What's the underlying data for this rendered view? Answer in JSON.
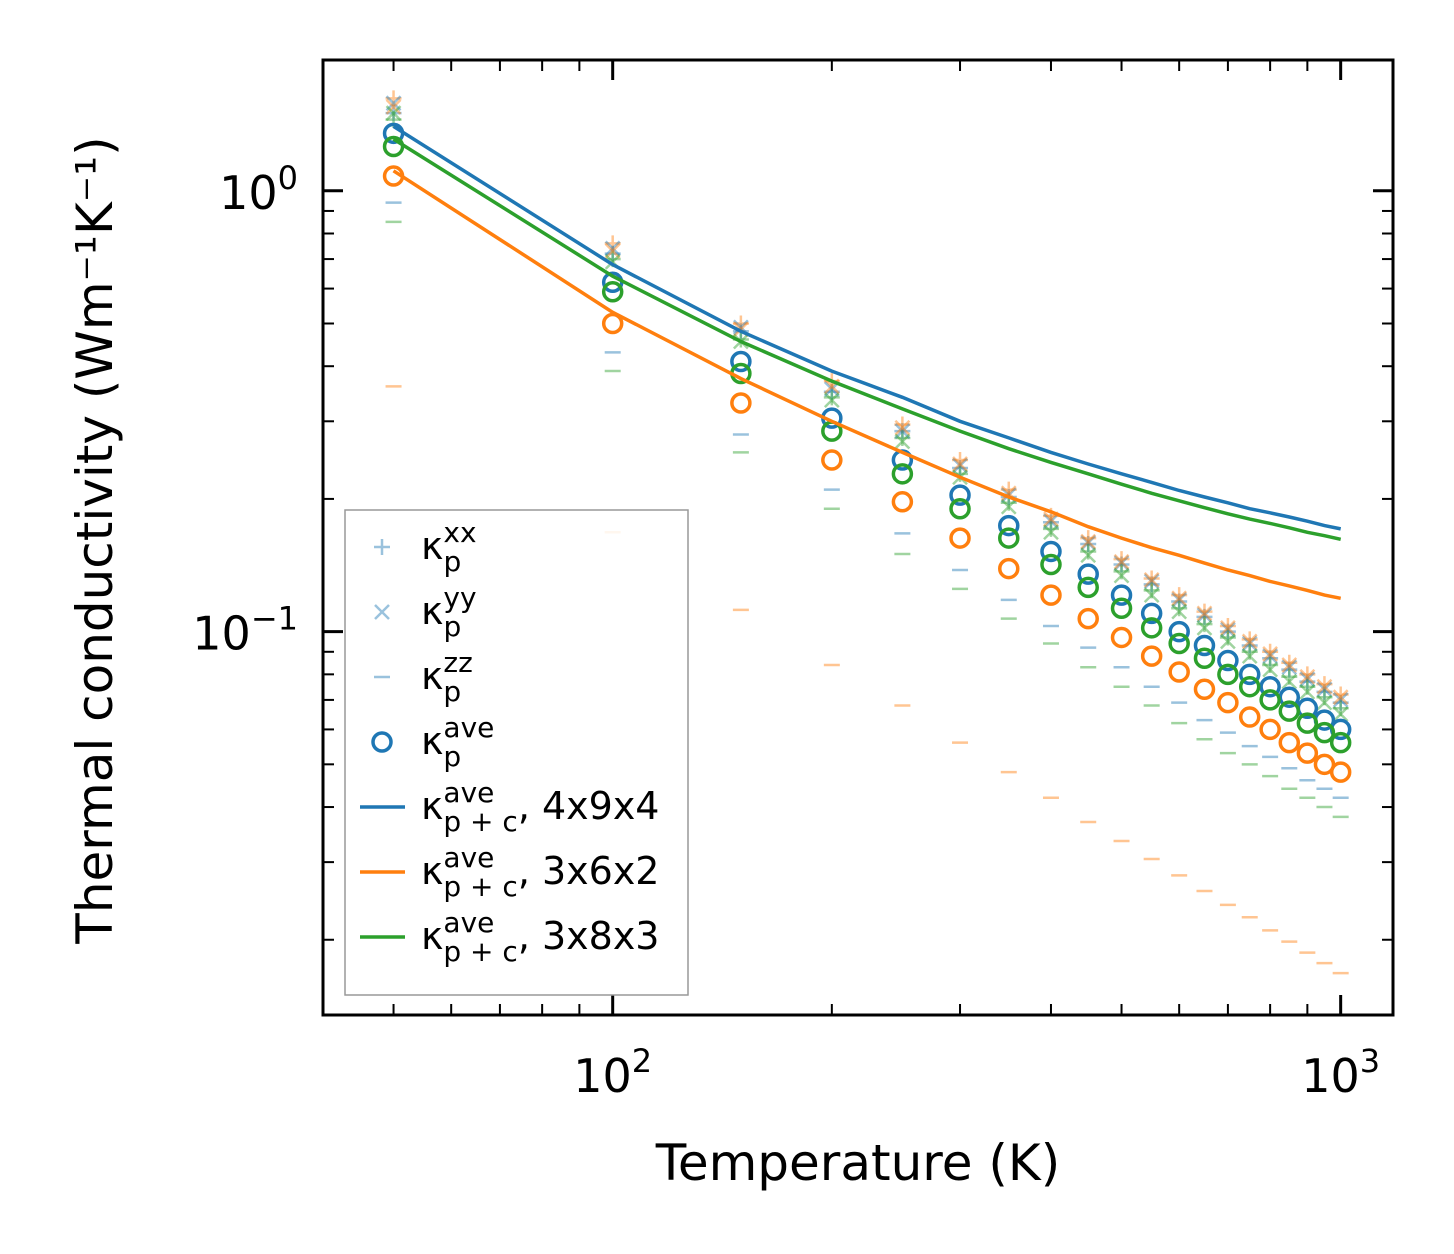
{
  "chart_data": {
    "type": "scatter",
    "x_scale": "log",
    "y_scale": "log",
    "xlabel": "Temperature (K)",
    "ylabel": "Thermal conductivity (Wm⁻¹K⁻¹)",
    "xlim": [
      40,
      1180
    ],
    "ylim": [
      0.0135,
      1.98
    ],
    "x_ticks": [
      {
        "value": 100,
        "base": "10",
        "exp": "2"
      },
      {
        "value": 1000,
        "base": "10",
        "exp": "3"
      }
    ],
    "y_ticks": [
      {
        "value": 1,
        "base": "10",
        "exp": "0"
      },
      {
        "value": 0.1,
        "base": "10",
        "exp": "−1"
      }
    ],
    "x": [
      50,
      100,
      150,
      200,
      250,
      300,
      350,
      400,
      450,
      500,
      550,
      600,
      650,
      700,
      750,
      800,
      850,
      900,
      950,
      1000
    ],
    "colors": {
      "blue": "#1f77b4",
      "orange": "#ff7f0e",
      "green": "#2ca02c"
    },
    "series": [
      {
        "name": "kp_xx_4x9x4",
        "kind": "plus",
        "color": "#1f77b4",
        "opacity": 0.45,
        "values": [
          1.5,
          0.72,
          0.48,
          0.35,
          0.285,
          0.235,
          0.202,
          0.177,
          0.158,
          0.142,
          0.128,
          0.117,
          0.108,
          0.1,
          0.093,
          0.087,
          0.082,
          0.077,
          0.073,
          0.069
        ]
      },
      {
        "name": "kp_xx_3x6x2",
        "kind": "plus",
        "color": "#ff7f0e",
        "opacity": 0.45,
        "values": [
          1.62,
          0.76,
          0.5,
          0.37,
          0.295,
          0.245,
          0.21,
          0.183,
          0.163,
          0.146,
          0.132,
          0.121,
          0.111,
          0.103,
          0.096,
          0.09,
          0.085,
          0.08,
          0.076,
          0.072
        ]
      },
      {
        "name": "kp_xx_3x8x3",
        "kind": "plus",
        "color": "#2ca02c",
        "opacity": 0.45,
        "values": [
          1.45,
          0.7,
          0.46,
          0.34,
          0.275,
          0.228,
          0.196,
          0.171,
          0.152,
          0.137,
          0.124,
          0.113,
          0.104,
          0.097,
          0.09,
          0.084,
          0.079,
          0.075,
          0.071,
          0.067
        ]
      },
      {
        "name": "kp_yy_4x9x4",
        "kind": "cross",
        "color": "#1f77b4",
        "opacity": 0.45,
        "values": [
          1.58,
          0.74,
          0.49,
          0.355,
          0.285,
          0.238,
          0.204,
          0.178,
          0.159,
          0.143,
          0.13,
          0.118,
          0.109,
          0.101,
          0.094,
          0.088,
          0.083,
          0.078,
          0.074,
          0.07
        ]
      },
      {
        "name": "kp_yy_3x6x2",
        "kind": "cross",
        "color": "#ff7f0e",
        "opacity": 0.45,
        "values": [
          1.55,
          0.73,
          0.485,
          0.36,
          0.29,
          0.24,
          0.206,
          0.18,
          0.16,
          0.144,
          0.131,
          0.119,
          0.11,
          0.102,
          0.095,
          0.089,
          0.084,
          0.079,
          0.075,
          0.071
        ]
      },
      {
        "name": "kp_yy_3x8x3",
        "kind": "cross",
        "color": "#2ca02c",
        "opacity": 0.45,
        "values": [
          1.5,
          0.69,
          0.455,
          0.335,
          0.27,
          0.224,
          0.192,
          0.168,
          0.149,
          0.134,
          0.121,
          0.111,
          0.102,
          0.095,
          0.088,
          0.082,
          0.077,
          0.073,
          0.069,
          0.065
        ]
      },
      {
        "name": "kp_zz_4x9x4",
        "kind": "dash",
        "color": "#1f77b4",
        "opacity": 0.45,
        "values": [
          0.94,
          0.43,
          0.28,
          0.21,
          0.167,
          0.138,
          0.118,
          0.103,
          0.092,
          0.083,
          0.075,
          0.069,
          0.063,
          0.059,
          0.055,
          0.052,
          0.049,
          0.046,
          0.044,
          0.042
        ]
      },
      {
        "name": "kp_zz_3x6x2",
        "kind": "dash",
        "color": "#ff7f0e",
        "opacity": 0.45,
        "values": [
          0.36,
          0.168,
          0.112,
          0.084,
          0.068,
          0.056,
          0.048,
          0.042,
          0.037,
          0.0335,
          0.0305,
          0.028,
          0.0258,
          0.024,
          0.0225,
          0.021,
          0.0198,
          0.0187,
          0.0177,
          0.0168
        ]
      },
      {
        "name": "kp_zz_3x8x3",
        "kind": "dash",
        "color": "#2ca02c",
        "opacity": 0.45,
        "values": [
          0.85,
          0.39,
          0.255,
          0.19,
          0.15,
          0.125,
          0.107,
          0.094,
          0.083,
          0.075,
          0.068,
          0.062,
          0.057,
          0.053,
          0.05,
          0.047,
          0.044,
          0.042,
          0.04,
          0.038
        ]
      },
      {
        "name": "kp_ave_4x9x4",
        "kind": "circle",
        "color": "#1f77b4",
        "opacity": 1,
        "values": [
          1.35,
          0.62,
          0.41,
          0.305,
          0.245,
          0.204,
          0.174,
          0.152,
          0.135,
          0.121,
          0.11,
          0.1,
          0.093,
          0.086,
          0.08,
          0.075,
          0.071,
          0.067,
          0.063,
          0.06
        ]
      },
      {
        "name": "kp_ave_3x6x2",
        "kind": "circle",
        "color": "#ff7f0e",
        "opacity": 1,
        "values": [
          1.08,
          0.5,
          0.33,
          0.245,
          0.197,
          0.163,
          0.139,
          0.121,
          0.107,
          0.097,
          0.088,
          0.081,
          0.074,
          0.069,
          0.064,
          0.06,
          0.056,
          0.053,
          0.05,
          0.048
        ]
      },
      {
        "name": "kp_ave_3x8x3",
        "kind": "circle",
        "color": "#2ca02c",
        "opacity": 1,
        "values": [
          1.26,
          0.59,
          0.385,
          0.285,
          0.228,
          0.19,
          0.163,
          0.142,
          0.126,
          0.113,
          0.102,
          0.094,
          0.087,
          0.08,
          0.075,
          0.07,
          0.066,
          0.062,
          0.059,
          0.056
        ]
      },
      {
        "name": "kpc_ave_4x9x4",
        "kind": "line",
        "color": "#1f77b4",
        "opacity": 1,
        "values": [
          1.4,
          0.68,
          0.48,
          0.39,
          0.34,
          0.3,
          0.275,
          0.255,
          0.24,
          0.228,
          0.218,
          0.209,
          0.202,
          0.196,
          0.19,
          0.186,
          0.182,
          0.178,
          0.174,
          0.171
        ]
      },
      {
        "name": "kpc_ave_3x6x2",
        "kind": "line",
        "color": "#ff7f0e",
        "opacity": 1,
        "values": [
          1.11,
          0.53,
          0.375,
          0.3,
          0.255,
          0.224,
          0.202,
          0.187,
          0.173,
          0.163,
          0.155,
          0.149,
          0.143,
          0.138,
          0.134,
          0.13,
          0.127,
          0.124,
          0.121,
          0.119
        ]
      },
      {
        "name": "kpc_ave_3x8x3",
        "kind": "line",
        "color": "#2ca02c",
        "opacity": 1,
        "values": [
          1.31,
          0.64,
          0.455,
          0.37,
          0.32,
          0.285,
          0.26,
          0.242,
          0.228,
          0.216,
          0.206,
          0.198,
          0.191,
          0.185,
          0.18,
          0.176,
          0.172,
          0.168,
          0.165,
          0.162
        ]
      }
    ],
    "legend": {
      "placement": "lower-left",
      "entries": [
        {
          "kind": "plus",
          "color": "#1f77b4",
          "opacity": 0.45,
          "symbol": "κ",
          "sub": "p",
          "sup": "xx",
          "suffix": ""
        },
        {
          "kind": "cross",
          "color": "#1f77b4",
          "opacity": 0.45,
          "symbol": "κ",
          "sub": "p",
          "sup": "yy",
          "suffix": ""
        },
        {
          "kind": "dash",
          "color": "#1f77b4",
          "opacity": 0.45,
          "symbol": "κ",
          "sub": "p",
          "sup": "zz",
          "suffix": ""
        },
        {
          "kind": "circle",
          "color": "#1f77b4",
          "opacity": 1,
          "symbol": "κ",
          "sub": "p",
          "sup": "ave",
          "suffix": ""
        },
        {
          "kind": "line",
          "color": "#1f77b4",
          "opacity": 1,
          "symbol": "κ",
          "sub": "p + c",
          "sup": "ave",
          "suffix": ", 4x9x4"
        },
        {
          "kind": "line",
          "color": "#ff7f0e",
          "opacity": 1,
          "symbol": "κ",
          "sub": "p + c",
          "sup": "ave",
          "suffix": ", 3x6x2"
        },
        {
          "kind": "line",
          "color": "#2ca02c",
          "opacity": 1,
          "symbol": "κ",
          "sub": "p + c",
          "sup": "ave",
          "suffix": ", 3x8x3"
        }
      ]
    }
  }
}
